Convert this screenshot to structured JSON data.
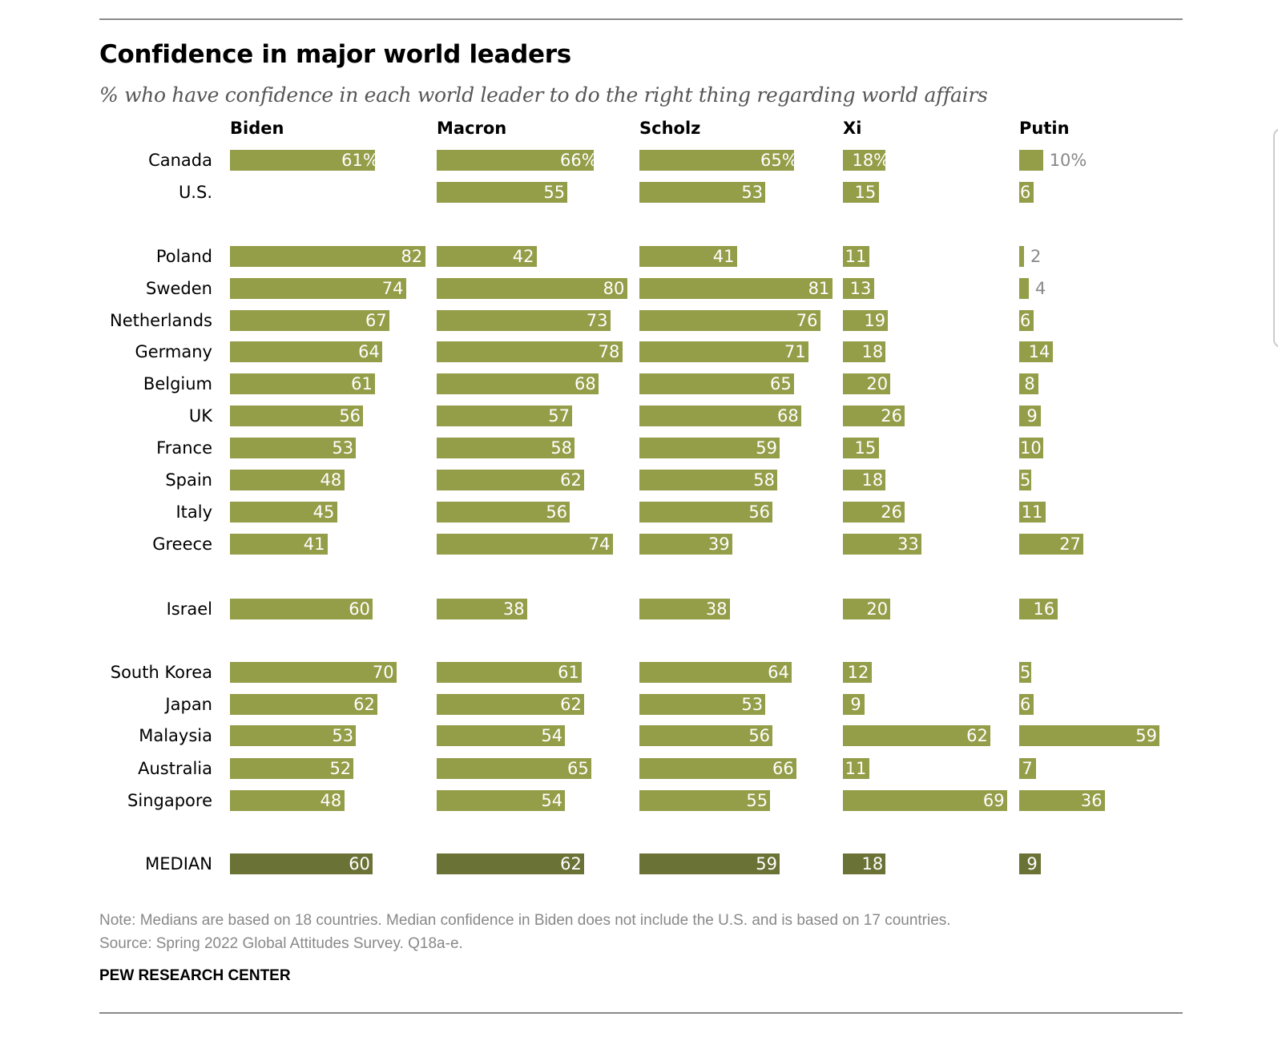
{
  "chart_data": {
    "type": "bar",
    "orientation": "horizontal",
    "title": "Confidence in major world leaders",
    "subtitle": "% who have confidence in each world leader to do the right thing regarding world affairs",
    "unit": "%",
    "xlim": [
      0,
      100
    ],
    "grid": false,
    "categories": [
      "Canada",
      "U.S.",
      "Poland",
      "Sweden",
      "Netherlands",
      "Germany",
      "Belgium",
      "UK",
      "France",
      "Spain",
      "Italy",
      "Greece",
      "Israel",
      "South Korea",
      "Japan",
      "Malaysia",
      "Australia",
      "Singapore",
      "MEDIAN"
    ],
    "series": [
      {
        "name": "Biden",
        "values": [
          61,
          null,
          82,
          74,
          67,
          64,
          61,
          56,
          53,
          48,
          45,
          41,
          60,
          70,
          62,
          53,
          52,
          48,
          60
        ]
      },
      {
        "name": "Macron",
        "values": [
          66,
          55,
          42,
          80,
          73,
          78,
          68,
          57,
          58,
          62,
          56,
          74,
          38,
          61,
          62,
          54,
          65,
          54,
          62
        ]
      },
      {
        "name": "Scholz",
        "values": [
          65,
          53,
          41,
          81,
          76,
          71,
          65,
          68,
          59,
          58,
          56,
          39,
          38,
          64,
          53,
          56,
          66,
          55,
          59
        ]
      },
      {
        "name": "Xi",
        "values": [
          18,
          15,
          11,
          13,
          19,
          18,
          20,
          26,
          15,
          18,
          26,
          33,
          20,
          12,
          9,
          62,
          11,
          69,
          18
        ]
      },
      {
        "name": "Putin",
        "values": [
          10,
          6,
          2,
          4,
          6,
          14,
          8,
          9,
          10,
          5,
          11,
          27,
          16,
          5,
          6,
          59,
          7,
          36,
          9
        ]
      }
    ],
    "colors": {
      "bar": "#949d48",
      "median_bar": "#6b7236",
      "outside_label": "#888888"
    }
  },
  "notes": {
    "note": "Note: Medians are based on 18 countries. Median confidence in Biden does not include the U.S. and is based on 17 countries.",
    "source": "Source: Spring 2022 Global Attitudes Survey. Q18a-e.",
    "brand": "PEW RESEARCH CENTER"
  }
}
